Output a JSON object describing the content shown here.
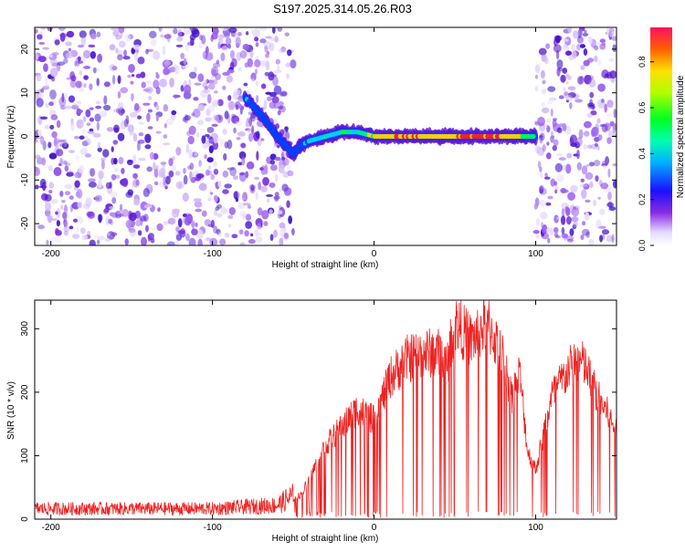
{
  "title": "S197.2025.314.05.26.R03",
  "colors": {
    "snr_line": "#ee2222",
    "axis": "#000000",
    "track_core": "#ff2020",
    "track_mid": "#00ff40",
    "track_outer": "#0040ff",
    "noise": "#7b2fe0"
  },
  "chart_data": [
    {
      "type": "heatmap",
      "title": "S197.2025.314.05.26.R03",
      "xlabel": "Height of straight line (km)",
      "ylabel": "Frequency (Hz)",
      "xlim": [
        -210,
        150
      ],
      "ylim": [
        -25,
        25
      ],
      "xticks": [
        -200,
        -100,
        0,
        100
      ],
      "yticks": [
        -20,
        -10,
        0,
        10,
        20
      ],
      "colorbar": {
        "label": "Normalized spectral amplitude",
        "range": [
          0,
          0.95
        ],
        "ticks": [
          "0.0",
          "0.2",
          "0.4",
          "0.6",
          "0.8"
        ],
        "tick_values": [
          0,
          0.2,
          0.4,
          0.6,
          0.8
        ]
      },
      "track": {
        "x": [
          -80,
          -70,
          -60,
          -50,
          -45,
          -40,
          -30,
          -20,
          -10,
          0,
          20,
          40,
          60,
          80,
          100
        ],
        "freq": [
          9,
          5,
          0,
          -4,
          -2,
          -1,
          0,
          1,
          1,
          0,
          0,
          0,
          0,
          0,
          0
        ],
        "amplitude": [
          0.25,
          0.22,
          0.2,
          0.18,
          0.25,
          0.3,
          0.35,
          0.4,
          0.35,
          0.5,
          0.7,
          0.55,
          0.8,
          0.65,
          0.4
        ]
      },
      "noise_regions": [
        [
          -210,
          -50
        ],
        [
          100,
          150
        ]
      ]
    },
    {
      "type": "line",
      "xlabel": "Height of straight line (km)",
      "ylabel": "SNR (10 * v/v)",
      "xlim": [
        -210,
        150
      ],
      "ylim": [
        0,
        345
      ],
      "xticks": [
        -200,
        -100,
        0,
        100
      ],
      "yticks": [
        0,
        100,
        200,
        300
      ],
      "series": [
        {
          "name": "SNR",
          "x": [
            -210,
            -100,
            -60,
            -45,
            -30,
            -20,
            -10,
            0,
            10,
            20,
            30,
            40,
            45,
            50,
            60,
            70,
            80,
            85,
            90,
            95,
            100,
            110,
            120,
            125,
            130,
            140,
            145,
            150
          ],
          "values": [
            15,
            15,
            20,
            40,
            120,
            150,
            180,
            160,
            230,
            260,
            270,
            270,
            250,
            320,
            290,
            320,
            260,
            200,
            240,
            110,
            80,
            200,
            240,
            260,
            250,
            190,
            170,
            140
          ]
        }
      ]
    }
  ]
}
